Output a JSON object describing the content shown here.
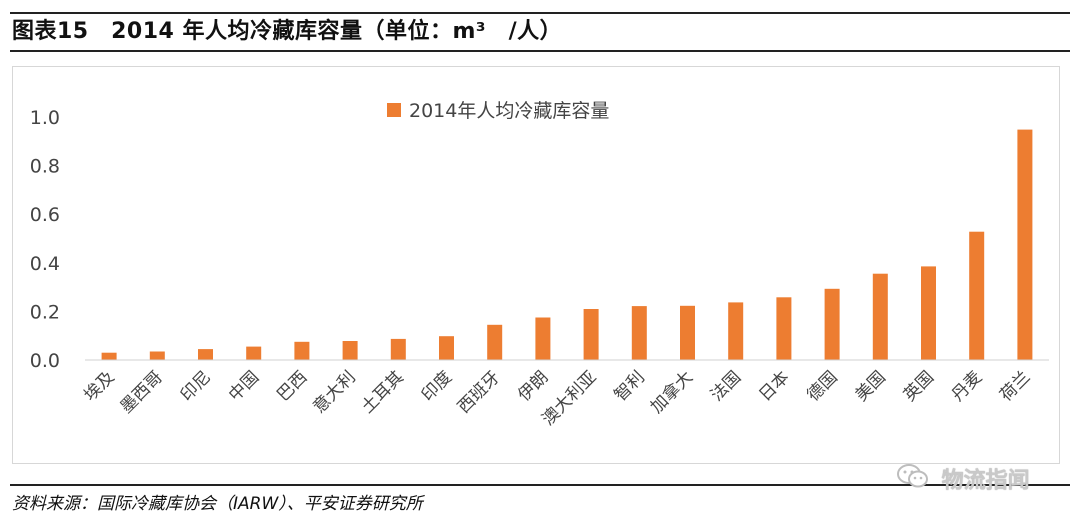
{
  "header": {
    "title": "图表15　2014 年人均冷藏库容量（单位：m³　/人）"
  },
  "chart_data": {
    "type": "bar",
    "title": "",
    "xlabel": "",
    "ylabel": "",
    "ylim": [
      0,
      1.0
    ],
    "yticks": [
      "0.0",
      "0.2",
      "0.4",
      "0.6",
      "0.8",
      "1.0"
    ],
    "grid": false,
    "legend_position": "top-center",
    "bar_color": "#ED7D31",
    "categories": [
      "埃及",
      "墨西哥",
      "印尼",
      "中国",
      "巴西",
      "意大利",
      "土耳其",
      "印度",
      "西班牙",
      "伊朗",
      "澳大利亚",
      "智利",
      "加拿大",
      "法国",
      "日本",
      "德国",
      "美国",
      "英国",
      "丹麦",
      "荷兰"
    ],
    "series": [
      {
        "name": "2014年人均冷藏库容量",
        "values": [
          0.03,
          0.035,
          0.045,
          0.055,
          0.075,
          0.078,
          0.087,
          0.098,
          0.145,
          0.175,
          0.21,
          0.222,
          0.223,
          0.237,
          0.258,
          0.293,
          0.355,
          0.385,
          0.528,
          0.948
        ]
      }
    ]
  },
  "footer": {
    "source": "资料来源：国际冷藏库协会（IARW）、平安证券研究所",
    "watermark": "物流指闻",
    "watermark_icon": "wechat-icon"
  }
}
